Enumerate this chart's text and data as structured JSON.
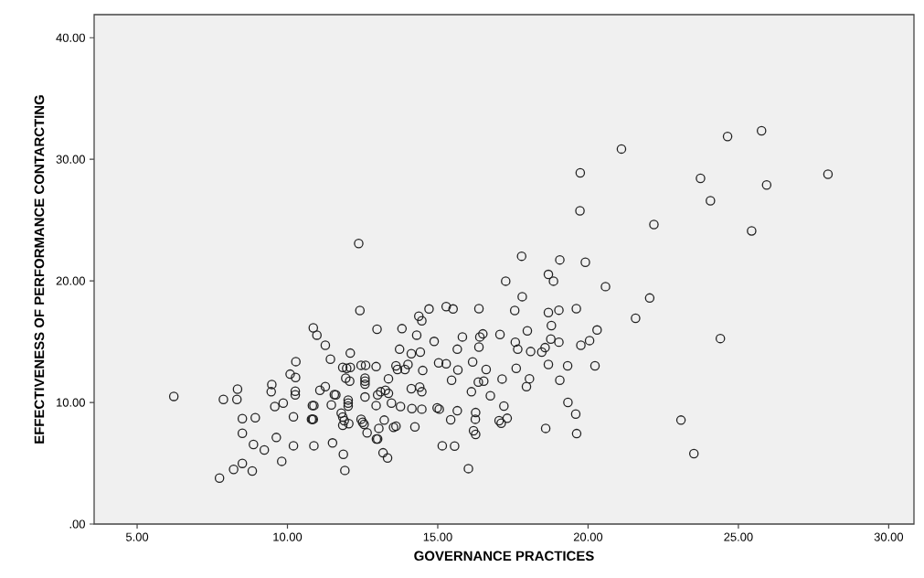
{
  "chart_data": {
    "type": "scatter",
    "xlabel": "GOVERNANCE PRACTICES",
    "ylabel": "EFFECTIVENESS OF PERFORMANCE CONTARCTING",
    "color": "#222222",
    "marker": "circle",
    "xlim": [
      3.57,
      30.84
    ],
    "ylim": [
      0,
      41.9
    ],
    "xticks": [
      {
        "value": 5,
        "label": "5.00"
      },
      {
        "value": 10,
        "label": "10.00"
      },
      {
        "value": 15,
        "label": "15.00"
      },
      {
        "value": 20,
        "label": "20.00"
      },
      {
        "value": 25,
        "label": "25.00"
      },
      {
        "value": 30,
        "label": "30.00"
      }
    ],
    "yticks": [
      {
        "value": 0,
        "label": ".00"
      },
      {
        "value": 10,
        "label": "10.00"
      },
      {
        "value": 20,
        "label": "20.00"
      },
      {
        "value": 30,
        "label": "30.00"
      },
      {
        "value": 40,
        "label": "40.00"
      }
    ],
    "x": [
      6.22,
      7.87,
      8.32,
      8.34,
      8.5,
      8.93,
      8.5,
      8.87,
      9.23,
      8.5,
      8.21,
      8.83,
      7.74,
      12.37,
      12.41,
      10.86,
      10.98,
      11.26,
      12.98,
      13.81,
      14.3,
      14.37,
      14.47,
      14.71,
      14.88,
      11.43,
      12.09,
      10.28,
      10.09,
      10.27,
      9.48,
      9.46,
      10.26,
      10.26,
      9.86,
      9.58,
      10.2,
      9.63,
      9.81,
      10.2,
      10.88,
      11.5,
      11.86,
      11.91,
      10.8,
      10.83,
      10.86,
      10.88,
      10.83,
      11.08,
      11.26,
      11.56,
      11.61,
      11.46,
      11.84,
      11.97,
      12.09,
      11.94,
      12.07,
      12.02,
      12.02,
      12.02,
      11.79,
      11.84,
      11.89,
      11.84,
      12.04,
      12.45,
      12.6,
      12.95,
      12.58,
      12.58,
      12.58,
      12.58,
      12.95,
      12.45,
      12.5,
      12.55,
      12.65,
      12.96,
      13.0,
      13.04,
      13.18,
      13.33,
      13.22,
      13.53,
      13.61,
      14.24,
      13.36,
      13.1,
      13.26,
      13.36,
      13.0,
      13.46,
      13.76,
      14.14,
      14.47,
      13.73,
      14.12,
      14.42,
      13.61,
      13.66,
      14.01,
      13.91,
      14.5,
      14.12,
      14.4,
      14.47,
      17.79,
      19.06,
      19.91,
      18.68,
      18.85,
      17.26,
      20.58,
      17.81,
      15.28,
      15.51,
      16.37,
      17.56,
      18.68,
      19.03,
      19.61,
      18.78,
      20.3,
      20.05,
      19.76,
      17.98,
      17.07,
      16.4,
      16.5,
      15.82,
      17.58,
      17.66,
      18.09,
      18.46,
      18.57,
      18.76,
      19.03,
      16.37,
      15.65,
      15.03,
      15.28,
      16.16,
      15.67,
      16.61,
      17.61,
      18.68,
      19.32,
      20.23,
      15.46,
      16.35,
      16.53,
      17.14,
      18.05,
      17.95,
      19.06,
      16.12,
      16.75,
      14.98,
      15.05,
      15.65,
      15.43,
      16.26,
      16.25,
      17.2,
      17.04,
      17.11,
      17.31,
      16.19,
      16.26,
      19.33,
      19.59,
      18.59,
      19.62,
      15.15,
      15.56,
      16.02,
      21.11,
      24.64,
      25.77,
      23.74,
      27.98,
      25.94,
      24.07,
      22.19,
      25.44,
      22.05,
      21.58,
      24.4,
      23.09,
      23.52,
      19.73,
      19.74
    ],
    "values": [
      10.5,
      10.25,
      10.25,
      11.1,
      8.67,
      8.74,
      7.47,
      6.54,
      6.09,
      4.99,
      4.49,
      4.36,
      3.78,
      23.08,
      17.57,
      16.14,
      15.54,
      14.71,
      16.02,
      16.07,
      15.54,
      17.09,
      16.72,
      17.69,
      15.02,
      13.56,
      14.06,
      13.36,
      12.33,
      12.05,
      11.48,
      10.88,
      10.93,
      10.62,
      9.95,
      9.67,
      8.82,
      7.12,
      5.16,
      6.44,
      6.44,
      6.67,
      5.74,
      4.41,
      8.62,
      8.62,
      8.62,
      9.75,
      9.75,
      11.0,
      11.3,
      10.65,
      10.62,
      9.8,
      12.88,
      12.81,
      12.88,
      12.0,
      11.75,
      10.2,
      9.95,
      9.7,
      9.12,
      8.8,
      8.5,
      8.12,
      8.25,
      13.06,
      13.06,
      12.95,
      12.0,
      11.75,
      11.5,
      10.45,
      9.75,
      8.62,
      8.37,
      8.2,
      7.5,
      6.99,
      6.99,
      7.87,
      5.86,
      5.44,
      8.55,
      7.95,
      8.05,
      7.99,
      11.95,
      10.88,
      11.0,
      10.75,
      10.62,
      9.95,
      9.67,
      9.5,
      9.45,
      14.38,
      14.01,
      14.14,
      13.01,
      12.71,
      13.13,
      12.71,
      12.63,
      11.13,
      11.26,
      10.88,
      22.03,
      21.73,
      21.53,
      20.53,
      19.98,
      19.98,
      19.53,
      18.7,
      17.89,
      17.69,
      17.72,
      17.57,
      17.4,
      17.59,
      17.72,
      16.32,
      15.96,
      15.09,
      14.71,
      15.89,
      15.59,
      15.39,
      15.64,
      15.39,
      14.96,
      14.38,
      14.19,
      14.14,
      14.51,
      15.21,
      14.96,
      14.56,
      14.38,
      13.26,
      13.18,
      13.33,
      12.68,
      12.71,
      12.81,
      13.13,
      13.01,
      13.01,
      11.83,
      11.68,
      11.75,
      11.93,
      11.95,
      11.3,
      11.83,
      10.88,
      10.55,
      9.55,
      9.45,
      9.32,
      8.57,
      9.17,
      8.62,
      9.7,
      8.5,
      8.29,
      8.7,
      7.67,
      7.37,
      10.0,
      9.05,
      7.87,
      7.44,
      6.44,
      6.41,
      4.56,
      30.85,
      31.88,
      32.35,
      28.44,
      28.77,
      27.89,
      26.59,
      24.64,
      24.11,
      18.59,
      16.92,
      15.26,
      8.55,
      5.79,
      25.76,
      28.89
    ]
  }
}
